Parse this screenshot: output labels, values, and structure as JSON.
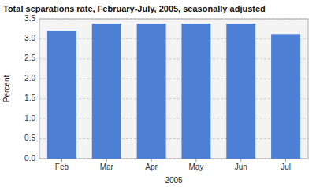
{
  "chart_data": {
    "type": "bar",
    "title": "Total separations rate, February-July, 2005, seasonally adjusted",
    "xlabel": "2005",
    "ylabel": "Percent",
    "categories": [
      "Feb",
      "Mar",
      "Apr",
      "May",
      "Jun",
      "Jul"
    ],
    "values": [
      3.2,
      3.38,
      3.38,
      3.38,
      3.38,
      3.12
    ],
    "color": "#4d7fd4",
    "ylim": [
      0.0,
      3.5
    ],
    "yticks": [
      {
        "value": 0.0,
        "label": "0.0"
      },
      0.5,
      {
        "value": 1.0,
        "label": "1.0"
      },
      1.5,
      {
        "value": 2.0,
        "label": "2.0"
      },
      2.5,
      {
        "value": 3.0,
        "label": "3.0"
      },
      3.5
    ],
    "grid": true
  }
}
